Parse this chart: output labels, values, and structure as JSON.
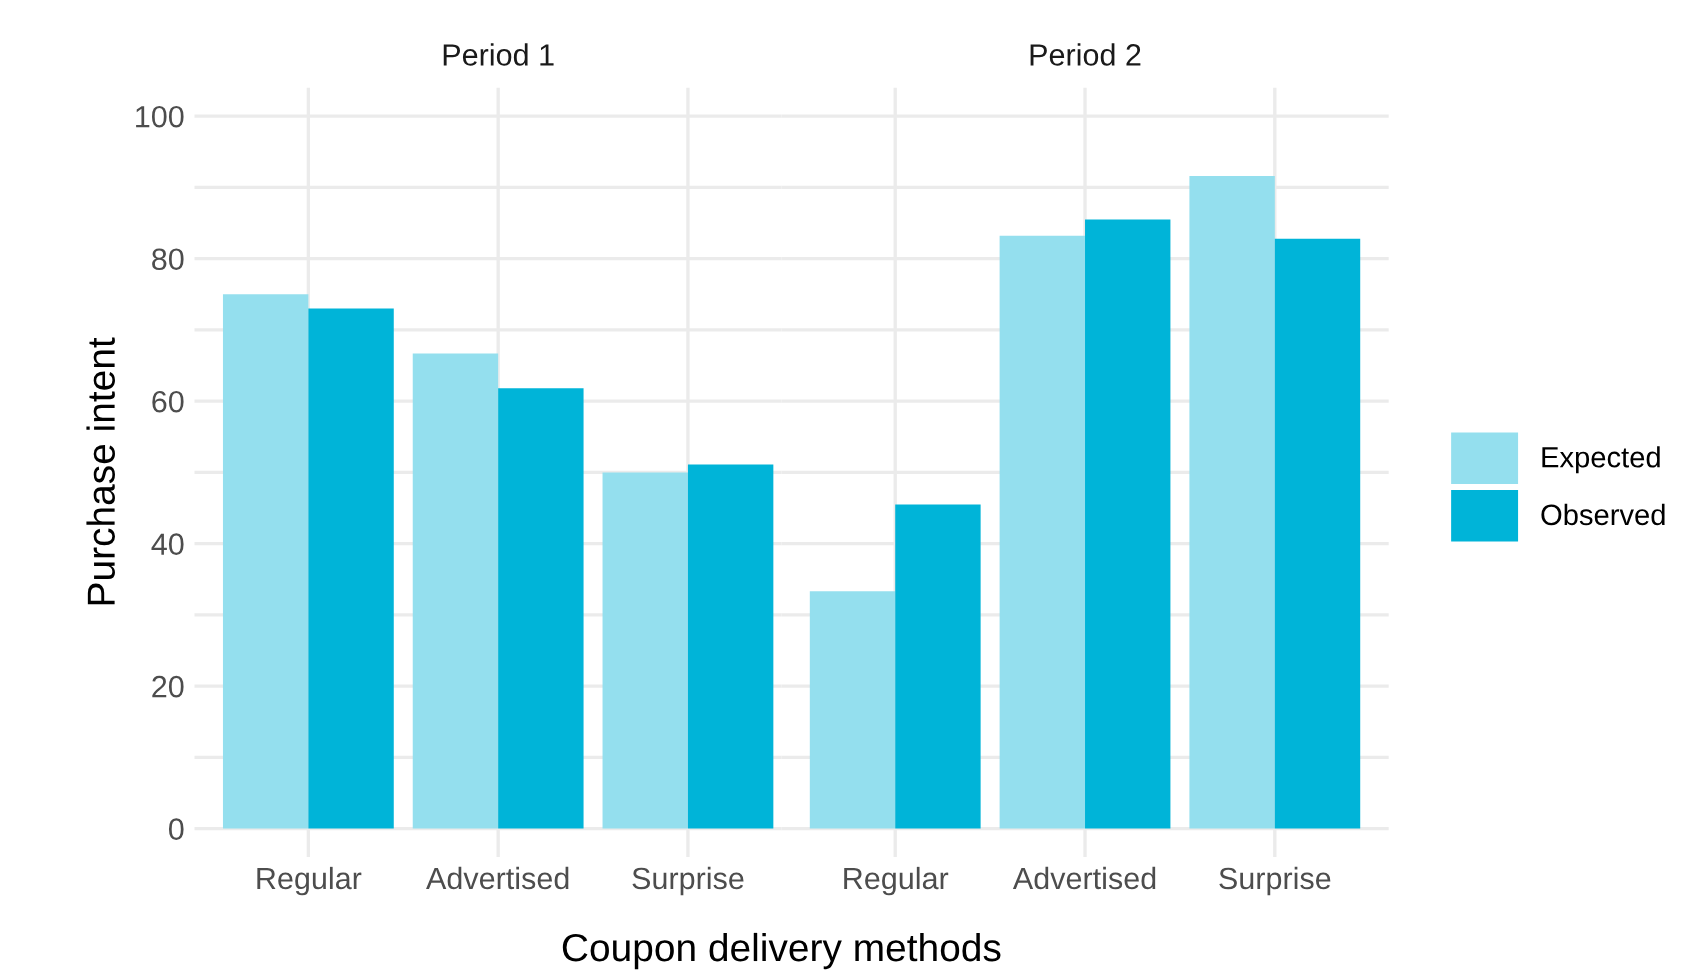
{
  "chart_data": [
    {
      "type": "bar",
      "title": "Period 1",
      "xlabel": "Coupon delivery methods",
      "ylabel": "Purchase intent",
      "categories": [
        "Regular",
        "Advertised",
        "Surprise"
      ],
      "series": [
        {
          "name": "Expected",
          "color": "#94dfee",
          "values": [
            75,
            66.7,
            50
          ]
        },
        {
          "name": "Observed",
          "color": "#00b4d8",
          "values": [
            73,
            61.8,
            51.1
          ]
        }
      ],
      "ylim": [
        -4,
        104
      ],
      "yticks": [
        0,
        {
          "value": 10,
          "label": null
        },
        20,
        {
          "value": 30,
          "label": null
        },
        40,
        {
          "value": 50,
          "label": null
        },
        60,
        {
          "value": 70,
          "label": null
        },
        80,
        {
          "value": 90,
          "label": null
        },
        100
      ],
      "grid": true,
      "legend": "right"
    },
    {
      "type": "bar",
      "title": "Period 2",
      "categories": [
        "Regular",
        "Advertised",
        "Surprise"
      ],
      "series": [
        {
          "color": "#94dfee",
          "values": [
            33.3,
            83.2,
            91.6
          ]
        },
        {
          "color": "#00b4d8",
          "values": [
            45.5,
            85.5,
            82.8
          ]
        }
      ],
      "ylim": [
        -4,
        104
      ],
      "yticks": [
        0,
        {
          "value": 10,
          "label": null
        },
        20,
        {
          "value": 30,
          "label": null
        },
        40,
        {
          "value": 50,
          "label": null
        },
        60,
        {
          "value": 70,
          "label": null
        },
        80,
        {
          "value": 90,
          "label": null
        },
        100
      ],
      "grid": true,
      "tick_labels": "x"
    }
  ]
}
